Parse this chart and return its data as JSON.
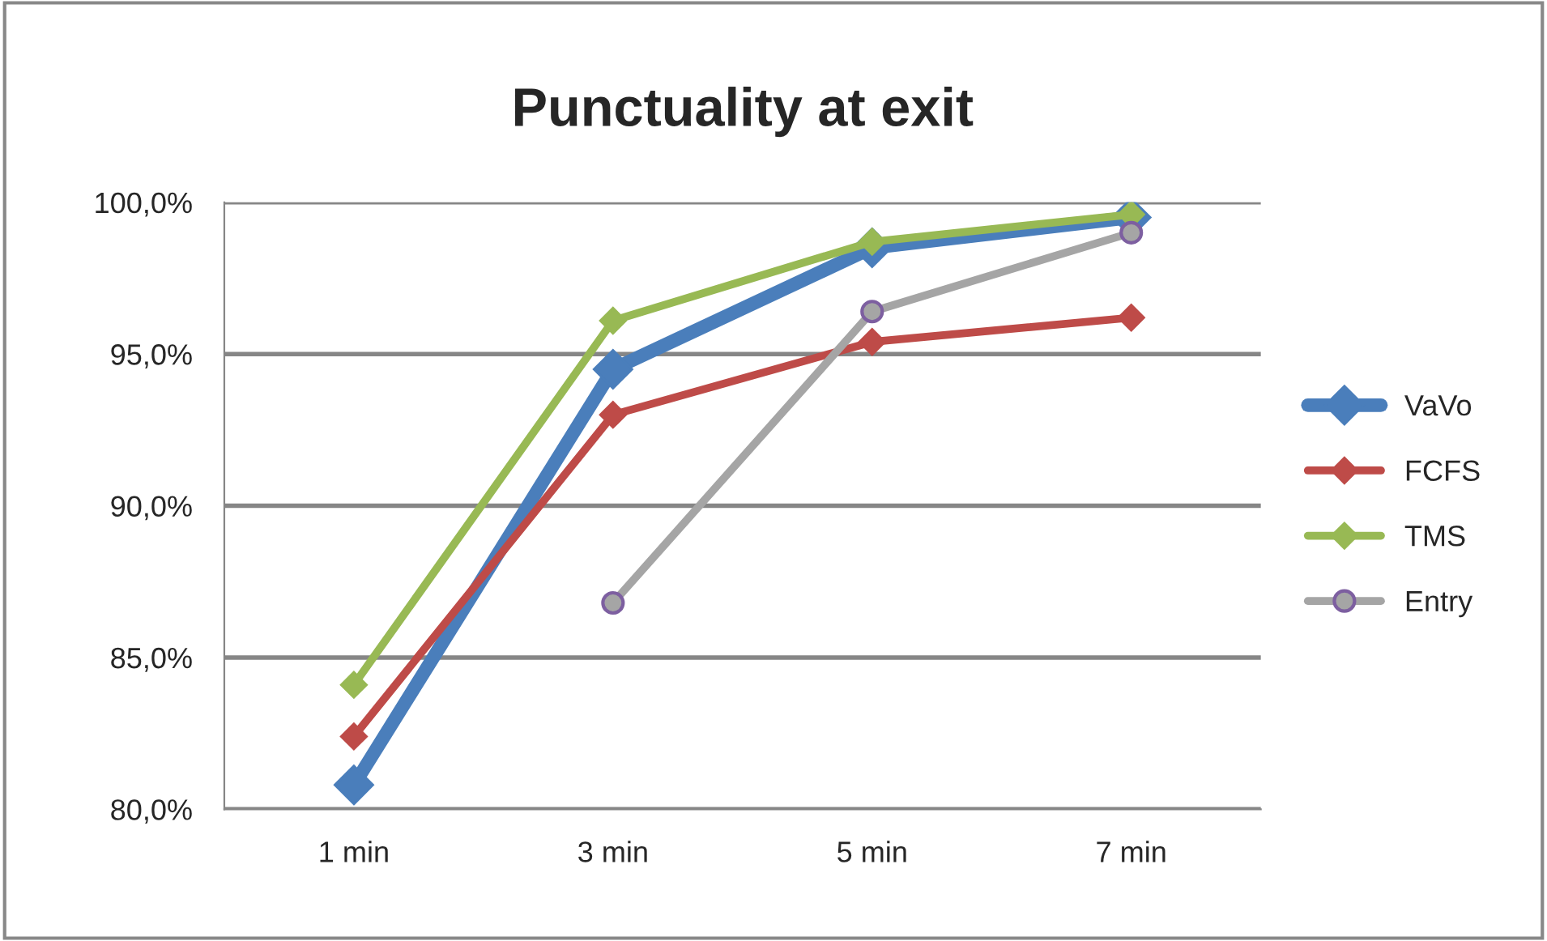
{
  "chart_data": {
    "type": "line",
    "title": "Punctuality at exit",
    "categories": [
      "1 min",
      "3 min",
      "5 min",
      "7 min"
    ],
    "series": [
      {
        "name": "VaVo",
        "color": "#4a7ebb",
        "marker": "diamond",
        "values": [
          80.8,
          94.5,
          98.5,
          99.5
        ]
      },
      {
        "name": "FCFS",
        "color": "#be4b48",
        "marker": "diamond",
        "values": [
          82.4,
          93.0,
          95.4,
          96.2
        ]
      },
      {
        "name": "TMS",
        "color": "#98b954",
        "marker": "diamond",
        "values": [
          84.1,
          96.1,
          98.7,
          99.6
        ]
      },
      {
        "name": "Entry",
        "color": "#a5a5a5",
        "marker": "circle",
        "values": [
          null,
          86.8,
          96.4,
          99.0
        ]
      }
    ],
    "ylim": [
      80,
      100
    ],
    "yticks": [
      {
        "value": 80,
        "label": "80,0%"
      },
      {
        "value": 85,
        "label": "85,0%"
      },
      {
        "value": 90,
        "label": "90,0%"
      },
      {
        "value": 95,
        "label": "95,0%"
      },
      {
        "value": 100,
        "label": "100,0%"
      }
    ],
    "grid": "y",
    "legend": "right",
    "line_style": "solid"
  }
}
